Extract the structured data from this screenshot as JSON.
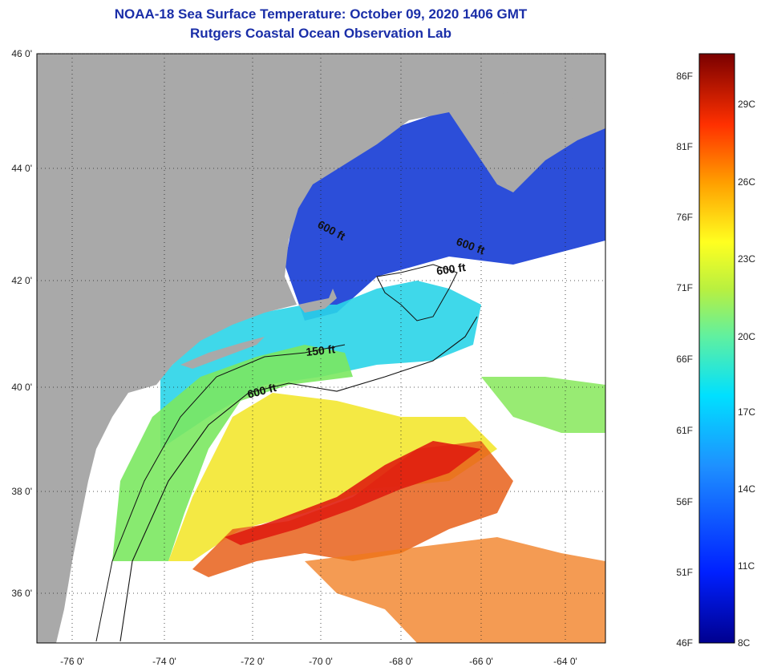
{
  "header": {
    "title": "NOAA-18 Sea Surface Temperature:  October 09, 2020 1406 GMT",
    "subtitle": "Rutgers Coastal Ocean Observation Lab"
  },
  "map": {
    "lat_ticks": [
      "46 0'",
      "44 0'",
      "42 0'",
      "40 0'",
      "38 0'",
      "36 0'"
    ],
    "lon_ticks": [
      "-76 0'",
      "-74 0'",
      "-72 0'",
      "-70 0'",
      "-68 0'",
      "-66 0'",
      "-64 0'"
    ],
    "contour_labels": [
      "600 ft",
      "600 ft",
      "600 ft",
      "150 ft",
      "600 ft"
    ],
    "colors": {
      "land": "#a9a9a9",
      "cloud": "#ffffff",
      "cold": "#1a3fd6",
      "cool": "#2ad4e8",
      "mild": "#7be860",
      "warm": "#f2e62a",
      "hot": "#e01e10"
    }
  },
  "colorbar": {
    "fahrenheit_labels": [
      "86F",
      "81F",
      "76F",
      "71F",
      "66F",
      "61F",
      "56F",
      "51F",
      "46F"
    ],
    "celsius_labels": [
      "29C",
      "26C",
      "23C",
      "20C",
      "17C",
      "14C",
      "11C",
      "8C"
    ]
  }
}
